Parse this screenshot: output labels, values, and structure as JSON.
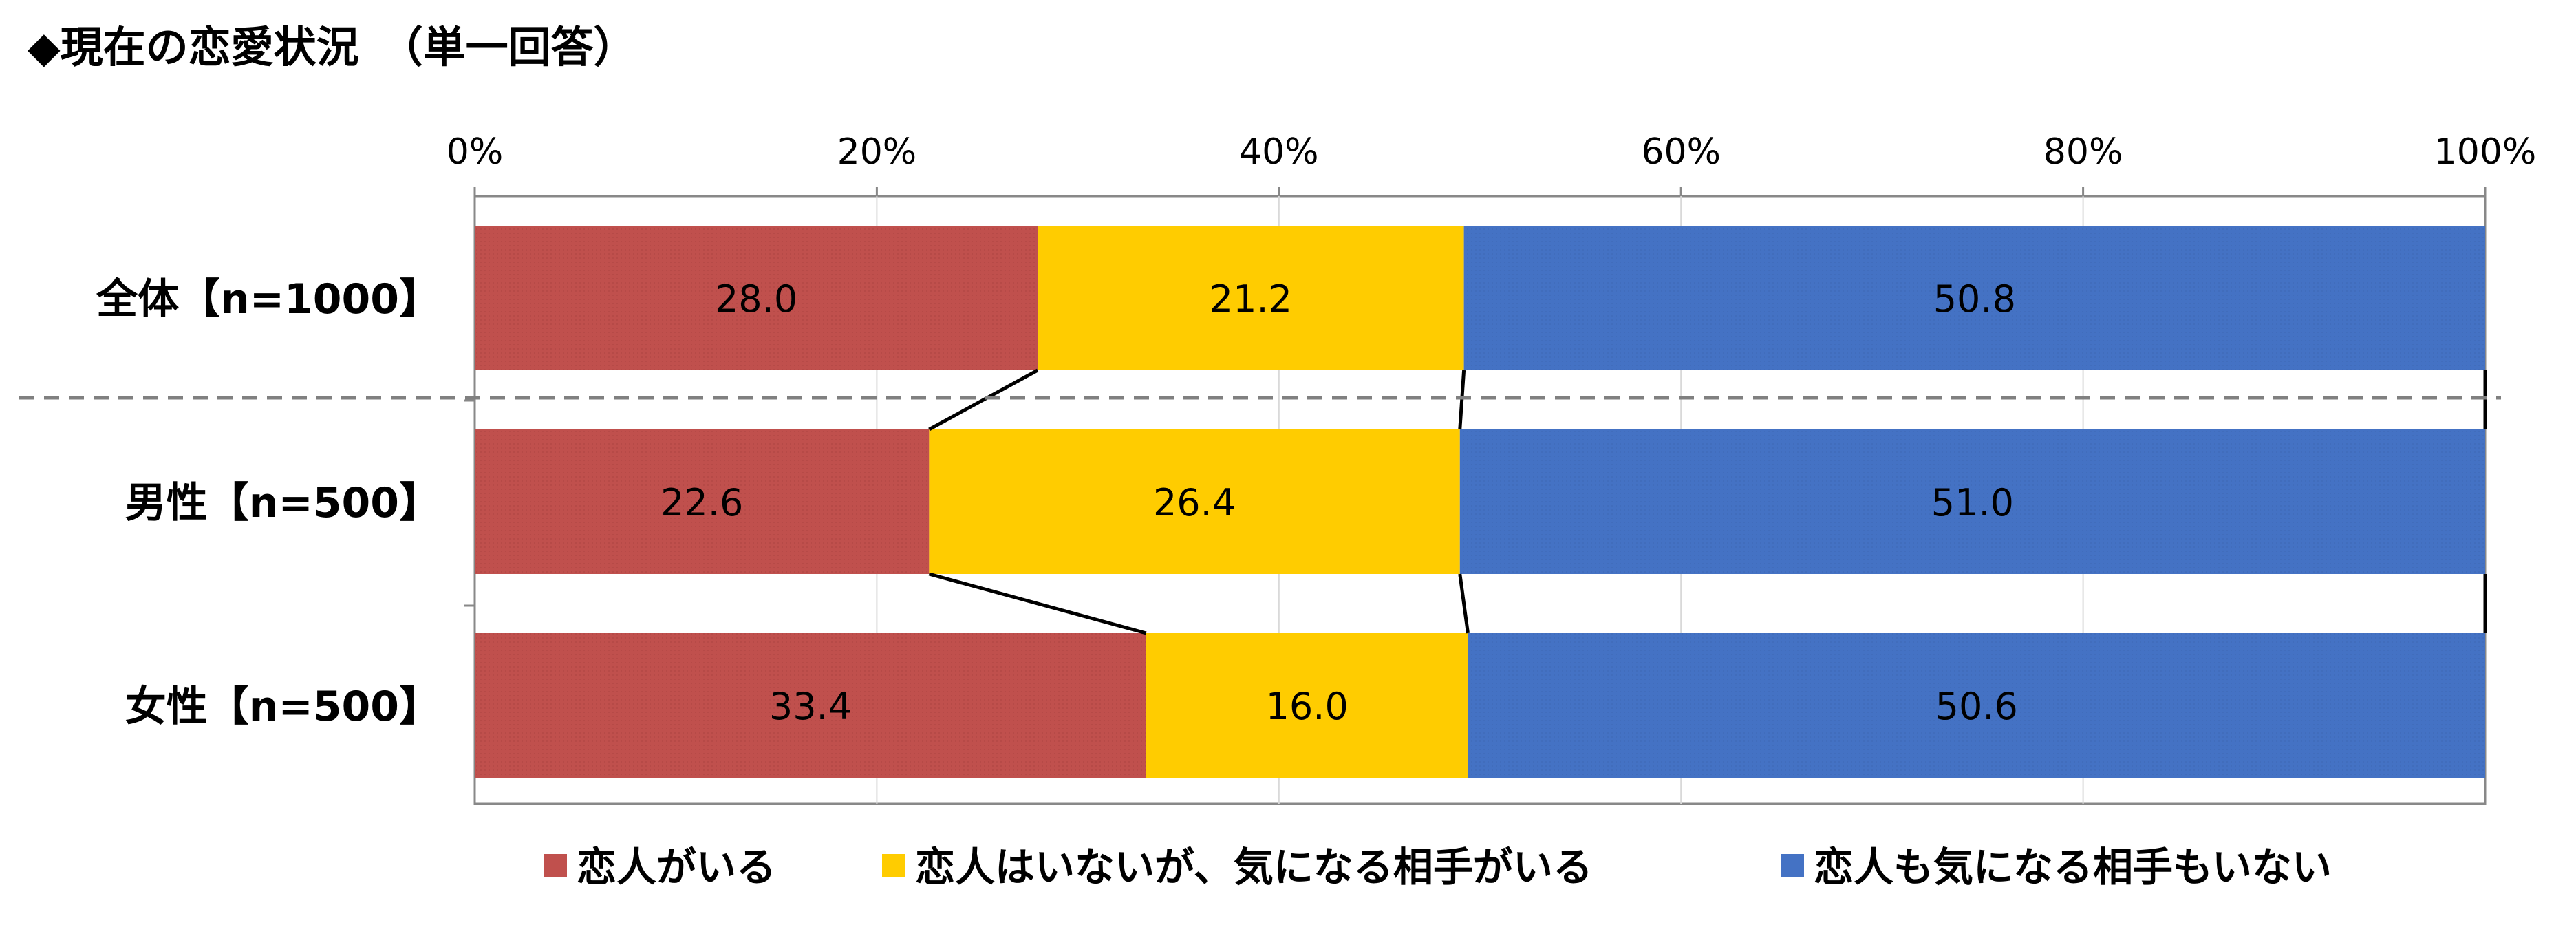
{
  "chart_data": {
    "type": "bar",
    "orientation": "horizontal",
    "stacked": "100%",
    "title": "◆現在の恋愛状況　（単一回答）",
    "categories": [
      "全体【n=1000】",
      "男性【n=500】",
      "女性【n=500】"
    ],
    "series": [
      {
        "name": "恋人がいる",
        "values": [
          28.0,
          22.6,
          33.4
        ],
        "color": "#C0504D"
      },
      {
        "name": "恋人はいないが、気になる相手がいる",
        "values": [
          21.2,
          26.4,
          16.0
        ],
        "color": "#FFCC00"
      },
      {
        "name": "恋人も気になる相手もいない",
        "values": [
          50.8,
          51.0,
          50.6
        ],
        "color": "#4472C4"
      }
    ],
    "x_ticks": [
      "0%",
      "20%",
      "40%",
      "60%",
      "80%",
      "100%"
    ],
    "xlim": [
      0,
      100
    ],
    "x_axis_position": "top",
    "grid": true,
    "legend_position": "bottom",
    "data_labels": true,
    "series_lines": true,
    "separator_after_category": 0
  }
}
